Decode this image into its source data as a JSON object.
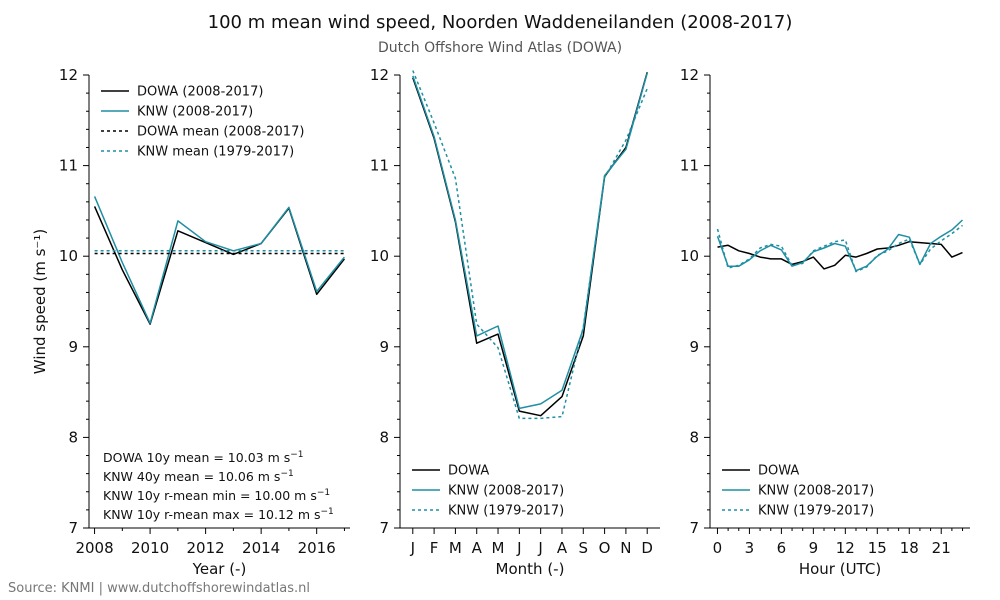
{
  "title": "100 m mean wind speed, Noorden Waddeneilanden (2008-2017)",
  "subtitle": "Dutch Offshore Wind Atlas (DOWA)",
  "source": "Source: KNMI | www.dutchoffshorewindatlas.nl",
  "colors": {
    "dowa": "#000000",
    "knw": "#1f8fa3"
  },
  "chart_data": [
    {
      "type": "line",
      "ylabel": "Wind speed (m s⁻¹)",
      "xlabel": "Year (-)",
      "ylim": [
        7,
        12
      ],
      "yticks": [
        7,
        8,
        9,
        10,
        11,
        12
      ],
      "xlim": [
        2007.8,
        2017.2
      ],
      "xticks": [
        2008,
        2010,
        2012,
        2014,
        2016
      ],
      "x": [
        2008,
        2009,
        2010,
        2011,
        2012,
        2013,
        2014,
        2015,
        2016,
        2017
      ],
      "series": [
        {
          "name": "DOWA (2008-2017)",
          "style": "solid",
          "color": "#000000",
          "values": [
            10.55,
            9.85,
            9.25,
            10.28,
            10.15,
            10.02,
            10.14,
            10.53,
            9.58,
            9.97
          ]
        },
        {
          "name": "KNW (2008-2017)",
          "style": "solid",
          "color": "#1f8fa3",
          "values": [
            10.66,
            9.93,
            9.26,
            10.39,
            10.16,
            10.06,
            10.14,
            10.54,
            9.61,
            9.99
          ]
        },
        {
          "name": "DOWA mean (2008-2017)",
          "style": "dotted",
          "color": "#000000",
          "values": [
            10.03,
            10.03,
            10.03,
            10.03,
            10.03,
            10.03,
            10.03,
            10.03,
            10.03,
            10.03
          ]
        },
        {
          "name": "KNW mean (1979-2017)",
          "style": "dotted",
          "color": "#1f8fa3",
          "values": [
            10.06,
            10.06,
            10.06,
            10.06,
            10.06,
            10.06,
            10.06,
            10.06,
            10.06,
            10.06
          ]
        }
      ],
      "legend_position": "top-left",
      "annotations": [
        {
          "text": "DOWA 10y mean = 10.03 m s",
          "sup": "−1"
        },
        {
          "text": "KNW 40y mean = 10.06 m s",
          "sup": "−1"
        },
        {
          "text": "KNW 10y r-mean min = 10.00 m s",
          "sup": "−1"
        },
        {
          "text": "KNW 10y r-mean max = 10.12 m s",
          "sup": "−1"
        }
      ]
    },
    {
      "type": "line",
      "xlabel": "Month (-)",
      "ylim": [
        7,
        12
      ],
      "yticks": [
        7,
        8,
        9,
        10,
        11,
        12
      ],
      "categories": [
        "J",
        "F",
        "M",
        "A",
        "M",
        "J",
        "J",
        "A",
        "S",
        "O",
        "N",
        "D"
      ],
      "series": [
        {
          "name": "DOWA",
          "style": "solid",
          "color": "#000000",
          "values": [
            11.97,
            11.3,
            10.38,
            9.04,
            9.14,
            8.29,
            8.24,
            8.45,
            9.12,
            10.88,
            11.2,
            12.03
          ]
        },
        {
          "name": "KNW (2008-2017)",
          "style": "solid",
          "color": "#1f8fa3",
          "values": [
            11.99,
            11.32,
            10.4,
            9.12,
            9.23,
            8.32,
            8.37,
            8.52,
            9.2,
            10.89,
            11.18,
            12.02
          ]
        },
        {
          "name": "KNW (1979-2017)",
          "style": "dotted",
          "color": "#1f8fa3",
          "values": [
            12.05,
            11.47,
            10.86,
            9.25,
            8.99,
            8.21,
            8.21,
            8.23,
            9.22,
            10.87,
            11.28,
            11.85
          ]
        }
      ],
      "legend_position": "bottom-left"
    },
    {
      "type": "line",
      "xlabel": "Hour (UTC)",
      "ylim": [
        7,
        12
      ],
      "yticks": [
        7,
        8,
        9,
        10,
        11,
        12
      ],
      "xlim": [
        -0.7,
        23.7
      ],
      "xticks": [
        0,
        3,
        6,
        9,
        12,
        15,
        18,
        21
      ],
      "x": [
        0,
        1,
        2,
        3,
        4,
        5,
        6,
        7,
        8,
        9,
        10,
        11,
        12,
        13,
        14,
        15,
        16,
        17,
        18,
        19,
        20,
        21,
        22,
        23
      ],
      "series": [
        {
          "name": "DOWA",
          "style": "solid",
          "color": "#000000",
          "values": [
            10.1,
            10.12,
            10.06,
            10.03,
            9.99,
            9.97,
            9.97,
            9.91,
            9.94,
            9.99,
            9.86,
            9.9,
            10.01,
            9.99,
            10.03,
            10.08,
            10.09,
            10.12,
            10.16,
            10.15,
            10.14,
            10.13,
            9.99,
            10.04
          ]
        },
        {
          "name": "KNW (2008-2017)",
          "style": "solid",
          "color": "#1f8fa3",
          "values": [
            10.22,
            9.89,
            9.89,
            9.96,
            10.06,
            10.12,
            10.07,
            9.89,
            9.93,
            10.05,
            10.09,
            10.14,
            10.11,
            9.84,
            9.89,
            10.0,
            10.08,
            10.24,
            10.21,
            9.91,
            10.14,
            10.22,
            10.29,
            10.4
          ]
        },
        {
          "name": "KNW (1979-2017)",
          "style": "dotted",
          "color": "#1f8fa3",
          "values": [
            10.3,
            9.87,
            9.9,
            9.97,
            10.09,
            10.13,
            10.11,
            9.9,
            9.92,
            10.06,
            10.11,
            10.16,
            10.18,
            9.83,
            9.88,
            10.01,
            10.06,
            10.14,
            10.19,
            9.91,
            10.08,
            10.17,
            10.25,
            10.34
          ]
        }
      ],
      "legend_position": "bottom-left"
    }
  ]
}
